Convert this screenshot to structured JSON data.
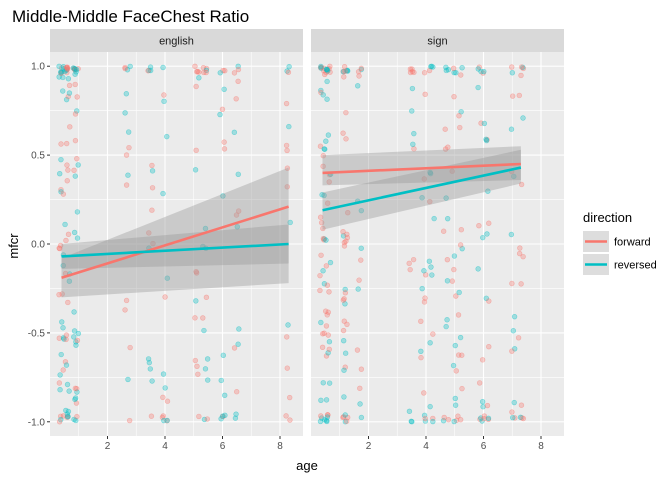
{
  "chart_data": {
    "type": "scatter",
    "title": "Middle-Middle FaceChest Ratio",
    "xlabel": "age",
    "ylabel": "mfcr",
    "facet_strips": [
      "english",
      "sign"
    ],
    "xlim": [
      0,
      8.8
    ],
    "ylim": [
      -1.08,
      1.08
    ],
    "x_ticks": [
      2,
      4,
      6,
      8
    ],
    "y_ticks": [
      -1.0,
      -0.5,
      0.0,
      0.5,
      1.0
    ],
    "y_tick_labels": [
      "-1.0",
      "-0.5",
      "0.0",
      "0.5",
      "1.0"
    ],
    "grid": true,
    "legend": {
      "title": "direction",
      "position": "right"
    },
    "colors": {
      "forward": "#F8766D",
      "reversed": "#00BFC4",
      "panel": "#EBEBEB",
      "strip": "#D9D9D9",
      "grid": "#FFFFFF"
    },
    "series": [
      {
        "name": "forward",
        "color": "#F8766D"
      },
      {
        "name": "reversed",
        "color": "#00BFC4"
      }
    ],
    "panels": [
      {
        "strip": "english",
        "subject_ages": [
          0.4,
          0.6,
          0.9,
          2.7,
          3.5,
          4.0,
          5.1,
          5.4,
          6.0,
          6.5,
          8.3
        ],
        "trend": {
          "forward": {
            "x": [
              0.4,
              8.3
            ],
            "y": [
              -0.19,
              0.21
            ],
            "ci_lower": [
              -0.3,
              -0.22
            ],
            "ci_upper": [
              -0.08,
              0.43
            ]
          },
          "reversed": {
            "x": [
              0.4,
              8.3
            ],
            "y": [
              -0.07,
              0.0
            ],
            "ci_lower": [
              -0.14,
              -0.11
            ],
            "ci_upper": [
              0.0,
              0.11
            ]
          }
        }
      },
      {
        "strip": "sign",
        "subject_ages": [
          0.4,
          0.6,
          1.2,
          1.7,
          3.5,
          3.9,
          4.2,
          4.7,
          5.0,
          5.2,
          5.9,
          6.1,
          7.0,
          7.3
        ],
        "trend": {
          "forward": {
            "x": [
              0.4,
              7.3
            ],
            "y": [
              0.4,
              0.45
            ],
            "ci_lower": [
              0.33,
              0.36
            ],
            "ci_upper": [
              0.5,
              0.55
            ]
          },
          "reversed": {
            "x": [
              0.4,
              7.3
            ],
            "y": [
              0.19,
              0.43
            ],
            "ci_lower": [
              0.08,
              0.34
            ],
            "ci_upper": [
              0.29,
              0.53
            ]
          }
        }
      }
    ]
  }
}
